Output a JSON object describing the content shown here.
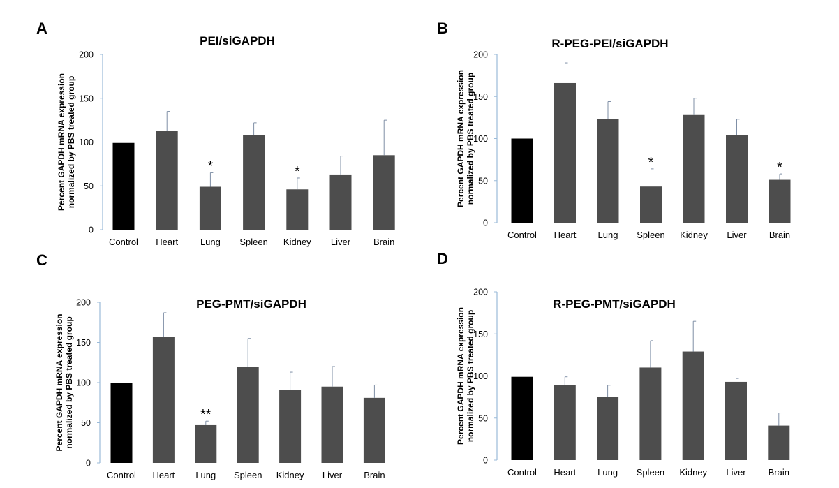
{
  "chart_data": [
    {
      "type": "bar",
      "panel": "A",
      "title": "PEI/siGAPDH",
      "ylabel": [
        "Percent GAPDH mRNA expression",
        "normalized by PBS treated group"
      ],
      "ylim": [
        0,
        200
      ],
      "yticks": [
        0,
        50,
        100,
        150,
        200
      ],
      "categories": [
        "Control",
        "Heart",
        "Lung",
        "Spleen",
        "Kidney",
        "Liver",
        "Brain"
      ],
      "values": [
        99,
        113,
        49,
        108,
        46,
        63,
        85
      ],
      "errors": [
        0,
        22,
        16,
        14,
        13,
        21,
        40
      ],
      "significance": [
        "",
        "",
        "*",
        "",
        "*",
        "",
        ""
      ],
      "colors": [
        "#000000",
        "#4d4d4d",
        "#4d4d4d",
        "#4d4d4d",
        "#4d4d4d",
        "#4d4d4d",
        "#4d4d4d"
      ]
    },
    {
      "type": "bar",
      "panel": "B",
      "title": "R-PEG-PEI/siGAPDH",
      "ylabel": [
        "Percent GAPDH mRNA expression",
        "normalized by PBS treated group"
      ],
      "ylim": [
        0,
        200
      ],
      "yticks": [
        0,
        50,
        100,
        150,
        200
      ],
      "categories": [
        "Control",
        "Heart",
        "Lung",
        "Spleen",
        "Kidney",
        "Liver",
        "Brain"
      ],
      "values": [
        100,
        166,
        123,
        43,
        128,
        104,
        51
      ],
      "errors": [
        0,
        24,
        21,
        21,
        20,
        19,
        7
      ],
      "significance": [
        "",
        "",
        "",
        "*",
        "",
        "",
        "*"
      ],
      "colors": [
        "#000000",
        "#4d4d4d",
        "#4d4d4d",
        "#4d4d4d",
        "#4d4d4d",
        "#4d4d4d",
        "#4d4d4d"
      ]
    },
    {
      "type": "bar",
      "panel": "C",
      "title": "PEG-PMT/siGAPDH",
      "ylabel": [
        "Percent GAPDH mRNA expression",
        "normalized by PBS treated group"
      ],
      "ylim": [
        0,
        200
      ],
      "yticks": [
        0,
        50,
        100,
        150,
        200
      ],
      "categories": [
        "Control",
        "Heart",
        "Lung",
        "Spleen",
        "Kidney",
        "Liver",
        "Brain"
      ],
      "values": [
        100,
        157,
        47,
        120,
        91,
        95,
        81
      ],
      "errors": [
        0,
        30,
        5,
        35,
        22,
        25,
        16
      ],
      "significance": [
        "",
        "",
        "**",
        "",
        "",
        "",
        ""
      ],
      "colors": [
        "#000000",
        "#4d4d4d",
        "#4d4d4d",
        "#4d4d4d",
        "#4d4d4d",
        "#4d4d4d",
        "#4d4d4d"
      ]
    },
    {
      "type": "bar",
      "panel": "D",
      "title": "R-PEG-PMT/siGAPDH",
      "ylabel": [
        "Percent GAPDH mRNA expression",
        "normalized by PBS treated group"
      ],
      "ylim": [
        0,
        200
      ],
      "yticks": [
        0,
        50,
        100,
        150,
        200
      ],
      "categories": [
        "Control",
        "Heart",
        "Lung",
        "Spleen",
        "Kidney",
        "Liver",
        "Brain"
      ],
      "values": [
        99,
        89,
        75,
        110,
        129,
        93,
        41
      ],
      "errors": [
        0,
        10,
        14,
        32,
        36,
        4,
        15
      ],
      "significance": [
        "",
        "",
        "",
        "",
        "",
        "",
        ""
      ],
      "colors": [
        "#000000",
        "#4d4d4d",
        "#4d4d4d",
        "#4d4d4d",
        "#4d4d4d",
        "#4d4d4d",
        "#4d4d4d"
      ]
    }
  ],
  "style": {
    "axis_color": "#9bbbd9",
    "error_color": "#7f8fa6",
    "text_color": "#000000"
  }
}
